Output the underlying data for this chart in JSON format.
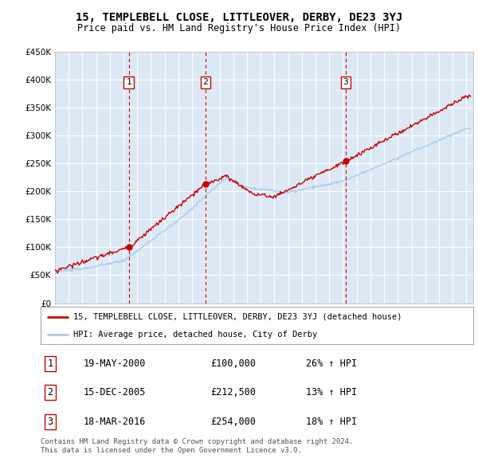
{
  "title": "15, TEMPLEBELL CLOSE, LITTLEOVER, DERBY, DE23 3YJ",
  "subtitle": "Price paid vs. HM Land Registry's House Price Index (HPI)",
  "background_color": "#ffffff",
  "plot_bg_color": "#dce9f5",
  "grid_color": "#ffffff",
  "ylim": [
    0,
    450000
  ],
  "yticks": [
    0,
    50000,
    100000,
    150000,
    200000,
    250000,
    300000,
    350000,
    400000,
    450000
  ],
  "xlim": [
    1995,
    2025.5
  ],
  "sale_dates": [
    2000.38,
    2005.96,
    2016.21
  ],
  "sale_prices": [
    100000,
    212500,
    254000
  ],
  "sale_labels": [
    "1",
    "2",
    "3"
  ],
  "legend_line1": "15, TEMPLEBELL CLOSE, LITTLEOVER, DERBY, DE23 3YJ (detached house)",
  "legend_line2": "HPI: Average price, detached house, City of Derby",
  "table_rows": [
    [
      "1",
      "19-MAY-2000",
      "£100,000",
      "26% ↑ HPI"
    ],
    [
      "2",
      "15-DEC-2005",
      "£212,500",
      "13% ↑ HPI"
    ],
    [
      "3",
      "18-MAR-2016",
      "£254,000",
      "18% ↑ HPI"
    ]
  ],
  "footer": "Contains HM Land Registry data © Crown copyright and database right 2024.\nThis data is licensed under the Open Government Licence v3.0.",
  "red_color": "#cc0000",
  "blue_color": "#aaccee",
  "title_fontsize": 10,
  "subtitle_fontsize": 8.5
}
